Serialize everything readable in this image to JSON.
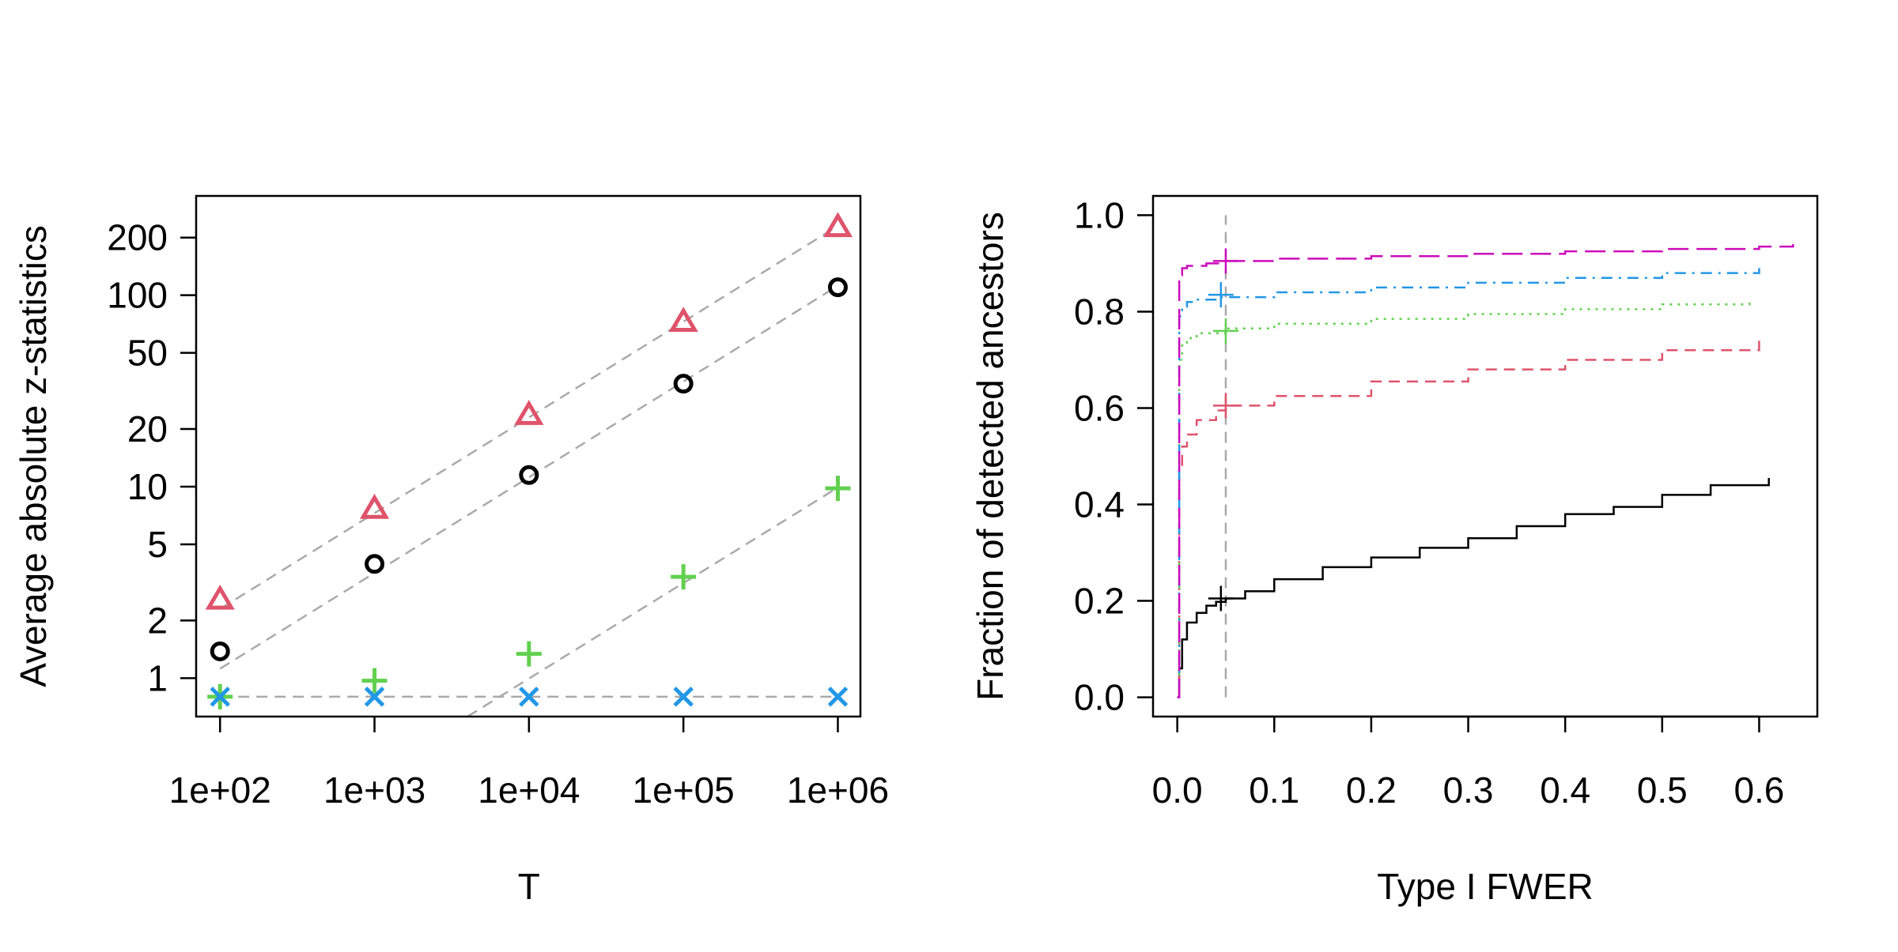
{
  "chart_data": [
    {
      "type": "scatter",
      "xlabel": "T",
      "ylabel": "Average absolute z-statistics",
      "x_scale": "log10",
      "y_scale": "log10",
      "x_ticks": [
        "1e+02",
        "1e+03",
        "1e+04",
        "1e+05",
        "1e+06"
      ],
      "y_ticks": [
        "1",
        "2",
        "5",
        "10",
        "20",
        "50",
        "100",
        "200"
      ],
      "x": [
        100,
        1000,
        10000,
        100000,
        1000000
      ],
      "series": [
        {
          "marker": "triangle",
          "color": "#DF536B",
          "values": [
            2.55,
            7.6,
            23.5,
            72,
            225
          ]
        },
        {
          "marker": "circle",
          "color": "#000000",
          "values": [
            1.38,
            3.95,
            11.5,
            34.5,
            110
          ]
        },
        {
          "marker": "plus",
          "color": "#61D04F",
          "values": [
            0.8,
            0.97,
            1.34,
            3.38,
            9.8
          ]
        },
        {
          "marker": "cross",
          "color": "#2297E6",
          "values": [
            0.8,
            0.8,
            0.8,
            0.8,
            0.8
          ]
        }
      ],
      "reference_lines": [
        {
          "style": "dashed",
          "color": "#AAAAAA",
          "points": [
            [
              100,
              2.3
            ],
            [
              1000000,
              230
            ]
          ]
        },
        {
          "style": "dashed",
          "color": "#AAAAAA",
          "points": [
            [
              100,
              1.12
            ],
            [
              1000000,
              112
            ]
          ]
        },
        {
          "style": "dashed",
          "color": "#AAAAAA",
          "points": [
            [
              4000,
              0.63
            ],
            [
              1000000,
              9.9
            ]
          ]
        },
        {
          "style": "dashed",
          "color": "#AAAAAA",
          "points": [
            [
              100,
              0.8
            ],
            [
              1000000,
              0.8
            ]
          ]
        }
      ],
      "xlim": [
        70,
        1400000
      ],
      "ylim": [
        0.63,
        330
      ]
    },
    {
      "type": "line",
      "xlabel": "Type I FWER",
      "ylabel": "Fraction of detected ancestors",
      "x_ticks": [
        "0.0",
        "0.1",
        "0.2",
        "0.3",
        "0.4",
        "0.5",
        "0.6"
      ],
      "y_ticks": [
        "0.0",
        "0.2",
        "0.4",
        "0.6",
        "0.8",
        "1.0"
      ],
      "xlim": [
        -0.025,
        0.66
      ],
      "ylim": [
        -0.04,
        1.04
      ],
      "vline": {
        "x": 0.05,
        "style": "dashed",
        "color": "#AAAAAA"
      },
      "series": [
        {
          "color": "#000000",
          "linestyle": "solid",
          "x": [
            0,
            0.002,
            0.005,
            0.01,
            0.02,
            0.03,
            0.04,
            0.05,
            0.07,
            0.1,
            0.15,
            0.2,
            0.25,
            0.3,
            0.35,
            0.4,
            0.45,
            0.5,
            0.55,
            0.61
          ],
          "y": [
            0,
            0.06,
            0.12,
            0.155,
            0.175,
            0.19,
            0.198,
            0.205,
            0.22,
            0.245,
            0.27,
            0.29,
            0.31,
            0.33,
            0.355,
            0.38,
            0.395,
            0.42,
            0.44,
            0.455
          ],
          "marker_at_x": 0.045,
          "marker_y": 0.205
        },
        {
          "color": "#DF536B",
          "linestyle": "dashed",
          "x": [
            0,
            0.002,
            0.005,
            0.01,
            0.02,
            0.04,
            0.05,
            0.1,
            0.2,
            0.3,
            0.4,
            0.5,
            0.6
          ],
          "y": [
            0,
            0.47,
            0.52,
            0.545,
            0.575,
            0.595,
            0.605,
            0.625,
            0.655,
            0.68,
            0.7,
            0.72,
            0.74
          ],
          "marker_at_x": 0.05,
          "marker_y": 0.605
        },
        {
          "color": "#61D04F",
          "linestyle": "dotted",
          "x": [
            0,
            0.002,
            0.005,
            0.01,
            0.02,
            0.05,
            0.1,
            0.2,
            0.3,
            0.4,
            0.5,
            0.59
          ],
          "y": [
            0,
            0.7,
            0.73,
            0.745,
            0.755,
            0.765,
            0.775,
            0.785,
            0.795,
            0.805,
            0.815,
            0.825
          ],
          "marker_at_x": 0.05,
          "marker_y": 0.76
        },
        {
          "color": "#2297E6",
          "linestyle": "dotdash",
          "x": [
            0,
            0.002,
            0.005,
            0.01,
            0.02,
            0.045,
            0.1,
            0.2,
            0.3,
            0.4,
            0.5,
            0.6
          ],
          "y": [
            0,
            0.79,
            0.81,
            0.82,
            0.825,
            0.83,
            0.84,
            0.85,
            0.86,
            0.87,
            0.88,
            0.895
          ],
          "marker_at_x": 0.045,
          "marker_y": 0.835
        },
        {
          "color": "#CD0BBC",
          "linestyle": "longdash",
          "x": [
            0,
            0.002,
            0.005,
            0.01,
            0.03,
            0.05,
            0.1,
            0.2,
            0.3,
            0.4,
            0.5,
            0.6,
            0.635
          ],
          "y": [
            0,
            0.875,
            0.89,
            0.895,
            0.9,
            0.905,
            0.91,
            0.915,
            0.92,
            0.925,
            0.93,
            0.935,
            0.94
          ],
          "marker_at_x": 0.05,
          "marker_y": 0.905
        }
      ]
    }
  ]
}
